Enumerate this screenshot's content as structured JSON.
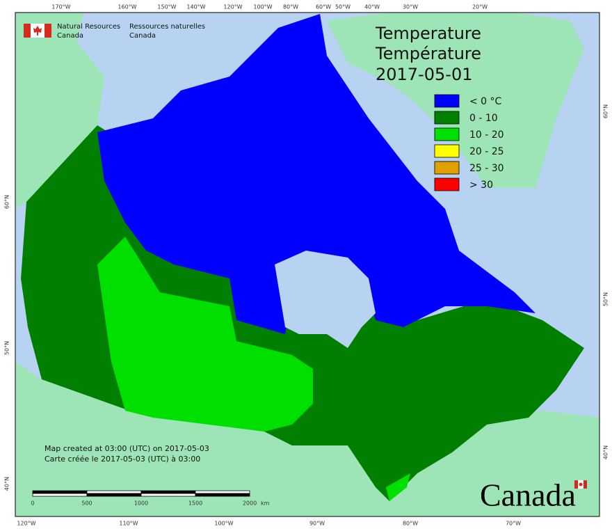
{
  "graticule": {
    "top": [
      "170°W",
      "160°W",
      "150°W",
      "140°W",
      "120°W",
      "100°W",
      "80°W",
      "60°W",
      "50°W",
      "40°W",
      "30°W",
      "20°W"
    ],
    "bottom": [
      "120°W",
      "110°W",
      "100°W",
      "90°W",
      "80°W",
      "70°W"
    ],
    "left": [
      "60°N",
      "50°N",
      "40°N"
    ],
    "right": [
      "60°N",
      "50°N",
      "40°N"
    ]
  },
  "logo": {
    "en": [
      "Natural Resources",
      "Canada"
    ],
    "fr": [
      "Ressources naturelles",
      "Canada"
    ]
  },
  "title": [
    "Temperature",
    "Température",
    "2017-05-01"
  ],
  "legend": [
    {
      "label": "< 0 °C",
      "color": "#0000ff"
    },
    {
      "label": "0 - 10",
      "color": "#007f00"
    },
    {
      "label": "10 - 20",
      "color": "#00e000"
    },
    {
      "label": "20 - 25",
      "color": "#ffff00"
    },
    {
      "label": "25 - 30",
      "color": "#e0a000"
    },
    {
      "label": "> 30",
      "color": "#ff0000"
    }
  ],
  "footer": [
    "Map created at 03:00 (UTC) on 2017-05-03",
    "Carte créée le 2017-05-03 (UTC) à 03:00"
  ],
  "scale_bar": {
    "labels": [
      "0",
      "500",
      "1000",
      "1500",
      "2000"
    ],
    "unit": "km"
  },
  "wordmark": "Canada"
}
